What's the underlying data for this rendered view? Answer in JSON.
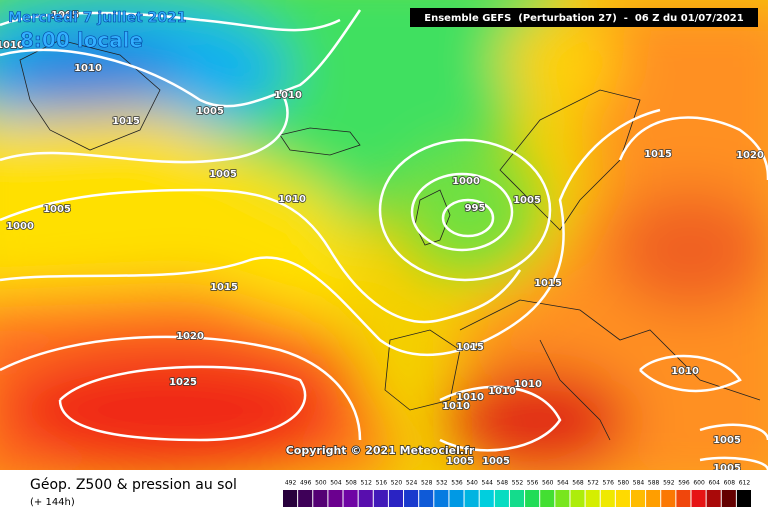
{
  "header": {
    "date": "Mercredi 7 juillet 2021",
    "time": "8:00 locale",
    "run": "Ensemble GEFS  (Perturbation 27)  -  06 Z du 01/07/2021"
  },
  "isobar_labels": [
    1005,
    1010,
    1010,
    1015,
    1005,
    1010,
    1005,
    1010,
    1005,
    1000,
    1000,
    995,
    1005,
    1015,
    1020,
    1015,
    1015,
    1020,
    1015,
    1025,
    1010,
    1010,
    1010,
    1010,
    1010,
    1005,
    1005,
    1005,
    1005
  ],
  "copyright": "Copyright © 2021 Meteociel.fr",
  "legend": {
    "title": "Géop. Z500 & pression au sol",
    "subtitle": "(+ 144h)",
    "scale": [
      492,
      496,
      500,
      504,
      508,
      512,
      516,
      520,
      524,
      528,
      532,
      536,
      540,
      544,
      548,
      552,
      556,
      560,
      564,
      568,
      572,
      576,
      580,
      584,
      588,
      592,
      596,
      600,
      604,
      608,
      612
    ]
  }
}
